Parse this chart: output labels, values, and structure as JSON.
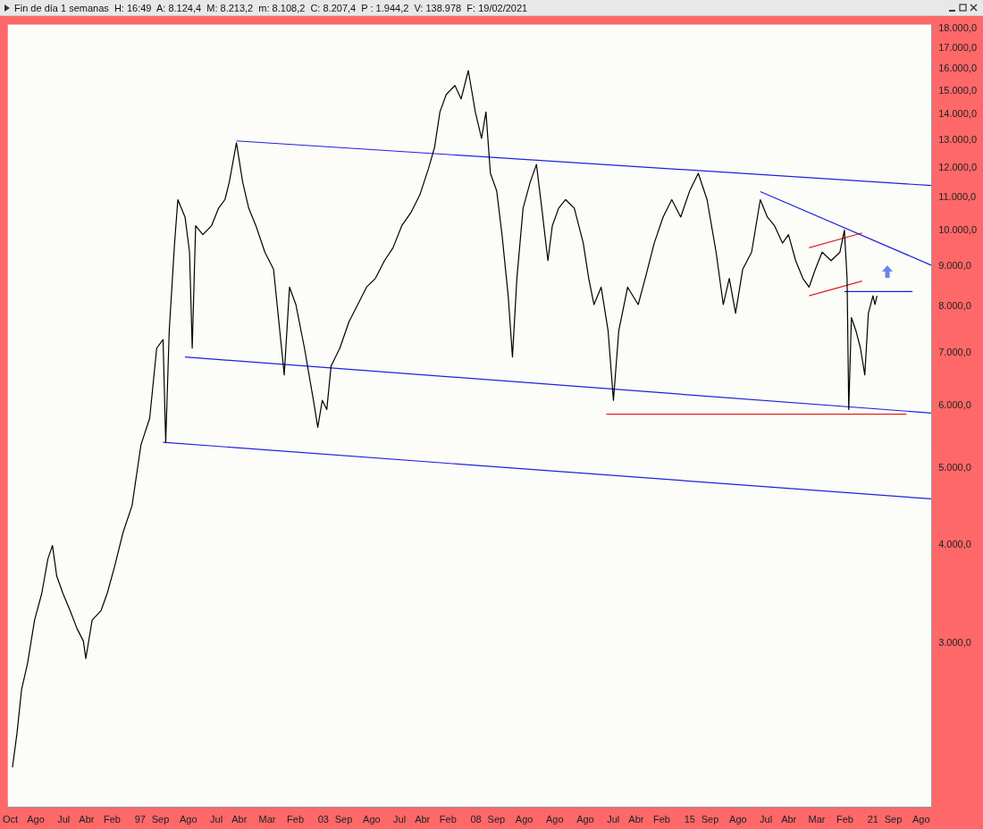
{
  "chart_data": {
    "type": "line",
    "title": "Fin de día 1 semanas  H: 16:49  A: 8.124,4  M: 8.213,2  m: 8.108,2  C: 8.207,4  P : 1.944,2  V: 138.978  F: 19/02/2021",
    "log": "y",
    "legend": false,
    "marker": "none",
    "line_style": "solid",
    "xlim": [
      "1992-09-01",
      "2022-12-01"
    ],
    "xticks": [
      {
        "value": "1992-10",
        "label": "Oct"
      },
      {
        "value": "1993-08",
        "label": "Ago"
      },
      {
        "value": "1994-07",
        "label": "Jul"
      },
      {
        "value": "1995-04",
        "label": "Abr"
      },
      {
        "value": "1996-02",
        "label": "Feb"
      },
      {
        "value": "1997-01",
        "label": "97"
      },
      {
        "value": "1997-09",
        "label": "Sep"
      },
      {
        "value": "1998-08",
        "label": "Ago"
      },
      {
        "value": "1999-07",
        "label": "Jul"
      },
      {
        "value": "2000-04",
        "label": "Abr"
      },
      {
        "value": "2001-03",
        "label": "Mar"
      },
      {
        "value": "2002-02",
        "label": "Feb"
      },
      {
        "value": "2003-01",
        "label": "03"
      },
      {
        "value": "2003-09",
        "label": "Sep"
      },
      {
        "value": "2004-08",
        "label": "Ago"
      },
      {
        "value": "2005-07",
        "label": "Jul"
      },
      {
        "value": "2006-04",
        "label": "Abr"
      },
      {
        "value": "2007-02",
        "label": "Feb"
      },
      {
        "value": "2008-01",
        "label": "08"
      },
      {
        "value": "2008-09",
        "label": "Sep"
      },
      {
        "value": "2009-08",
        "label": "Ago"
      },
      {
        "value": "2010-08",
        "label": "Ago"
      },
      {
        "value": "2011-08",
        "label": "Ago"
      },
      {
        "value": "2012-07",
        "label": "Jul"
      },
      {
        "value": "2013-04",
        "label": "Abr"
      },
      {
        "value": "2014-02",
        "label": "Feb"
      },
      {
        "value": "2015-01",
        "label": "15"
      },
      {
        "value": "2015-09",
        "label": "Sep"
      },
      {
        "value": "2016-08",
        "label": "Ago"
      },
      {
        "value": "2017-07",
        "label": "Jul"
      },
      {
        "value": "2018-04",
        "label": "Abr"
      },
      {
        "value": "2019-03",
        "label": "Mar"
      },
      {
        "value": "2020-02",
        "label": "Feb"
      },
      {
        "value": "2021-01",
        "label": "21"
      },
      {
        "value": "2021-09",
        "label": "Sep"
      },
      {
        "value": "2022-08",
        "label": "Ago"
      }
    ],
    "ylim": [
      1860,
      18200
    ],
    "yticks": [
      {
        "value": 3000,
        "label": "3.000,0"
      },
      {
        "value": 4000,
        "label": "4.000,0"
      },
      {
        "value": 5000,
        "label": "5.000,0"
      },
      {
        "value": 6000,
        "label": "6.000,0"
      },
      {
        "value": 7000,
        "label": "7.000,0"
      },
      {
        "value": 8000,
        "label": "8.000,0"
      },
      {
        "value": 9000,
        "label": "9.000,0"
      },
      {
        "value": 10000,
        "label": "10.000,0"
      },
      {
        "value": 11000,
        "label": "11.000,0"
      },
      {
        "value": 12000,
        "label": "12.000,0"
      },
      {
        "value": 13000,
        "label": "13.000,0"
      },
      {
        "value": 14000,
        "label": "14.000,0"
      },
      {
        "value": 15000,
        "label": "15.000,0"
      },
      {
        "value": 16000,
        "label": "16.000,0"
      },
      {
        "value": 17000,
        "label": "17.000,0"
      },
      {
        "value": 18000,
        "label": "18.000,0"
      }
    ],
    "series": [
      {
        "type": "line",
        "color": "#000000",
        "x": [
          "1992-10-27",
          "1992-12-20",
          "1993-02-12",
          "1993-04-25",
          "1993-07-18",
          "1993-10-12",
          "1993-12-25",
          "1994-02-17",
          "1994-04-09",
          "1994-06-22",
          "1994-09-16",
          "1994-12-09",
          "1995-02-22",
          "1995-03-23",
          "1995-06-07",
          "1995-09-21",
          "1995-12-04",
          "1996-02-27",
          "1996-06-12",
          "1996-09-26",
          "1997-01-11",
          "1997-04-25",
          "1997-07-18",
          "1997-10-02",
          "1997-11-03",
          "1997-12-15",
          "1998-02-17",
          "1998-03-28",
          "1998-06-22",
          "1998-08-15",
          "1998-09-16",
          "1998-10-27",
          "1999-01-21",
          "1999-05-05",
          "1999-07-28",
          "1999-10-12",
          "1999-12-04",
          "2000-02-27",
          "2000-05-11",
          "2000-07-23",
          "2000-10-17",
          "2001-02-01",
          "2001-05-16",
          "2001-09-21",
          "2001-11-23",
          "2002-02-07",
          "2002-05-21",
          "2002-09-05",
          "2002-10-27",
          "2002-12-20",
          "2003-02-12",
          "2003-04-04",
          "2003-07-18",
          "2003-11-03",
          "2004-02-17",
          "2004-06-01",
          "2004-09-16",
          "2005-01-02",
          "2005-04-14",
          "2005-07-28",
          "2005-11-13",
          "2006-02-27",
          "2006-06-12",
          "2006-08-25",
          "2006-10-27",
          "2007-01-11",
          "2007-04-25",
          "2007-07-08",
          "2007-10-02",
          "2007-12-25",
          "2008-03-08",
          "2008-04-30",
          "2008-06-22",
          "2008-09-05",
          "2008-11-08",
          "2009-01-21",
          "2009-03-13",
          "2009-05-05",
          "2009-07-18",
          "2009-10-12",
          "2009-12-25",
          "2010-02-27",
          "2010-05-11",
          "2010-07-03",
          "2010-09-16",
          "2010-12-09",
          "2011-03-23",
          "2011-07-08",
          "2011-09-11",
          "2011-11-13",
          "2012-02-07",
          "2012-04-30",
          "2012-07-03",
          "2012-09-05",
          "2012-12-20",
          "2013-04-25",
          "2013-07-18",
          "2013-11-03",
          "2014-02-17",
          "2014-06-01",
          "2014-09-16",
          "2015-01-02",
          "2015-04-14",
          "2015-07-28",
          "2015-11-13",
          "2016-02-07",
          "2016-04-19",
          "2016-07-03",
          "2016-09-26",
          "2017-01-11",
          "2017-04-25",
          "2017-07-18",
          "2017-10-12",
          "2018-01-16",
          "2018-03-28",
          "2018-06-22",
          "2018-09-16",
          "2018-11-29",
          "2019-02-12",
          "2019-05-05",
          "2019-08-20",
          "2019-12-04",
          "2020-01-26",
          "2020-02-27",
          "2020-03-18",
          "2020-04-19",
          "2020-06-12",
          "2020-08-05",
          "2020-09-26",
          "2020-11-08",
          "2021-01-02",
          "2021-01-25",
          "2021-02-19"
        ],
        "values": [
          2090,
          2310,
          2620,
          2830,
          3210,
          3470,
          3840,
          3990,
          3650,
          3470,
          3300,
          3130,
          3020,
          2870,
          3210,
          3300,
          3470,
          3740,
          4150,
          4480,
          5350,
          5780,
          7090,
          7270,
          5390,
          7460,
          9630,
          10930,
          10390,
          9380,
          7090,
          10130,
          9870,
          10130,
          10660,
          10930,
          11510,
          12900,
          11510,
          10660,
          10130,
          9380,
          8920,
          6560,
          8470,
          8050,
          7090,
          6090,
          5630,
          6090,
          5930,
          6730,
          7090,
          7650,
          8050,
          8470,
          8690,
          9150,
          9500,
          10130,
          10520,
          11070,
          11960,
          12740,
          14110,
          14850,
          15240,
          14660,
          15920,
          14110,
          13070,
          14110,
          11800,
          11220,
          9870,
          8260,
          6910,
          8690,
          10660,
          11510,
          12110,
          10660,
          9150,
          10130,
          10660,
          10930,
          10660,
          9630,
          8690,
          8050,
          8470,
          7460,
          6090,
          7460,
          8470,
          8050,
          8690,
          9630,
          10390,
          10930,
          10390,
          11220,
          11800,
          10930,
          9380,
          8050,
          8690,
          7850,
          8920,
          9380,
          10930,
          10390,
          10130,
          9630,
          9870,
          9150,
          8690,
          8470,
          8920,
          9380,
          9150,
          9380,
          10000,
          8690,
          5930,
          7750,
          7460,
          7090,
          6560,
          7850,
          8260,
          8050,
          8260
        ]
      },
      {
        "type": "line",
        "color": "#2020e0",
        "x": [
          "2000-02-27",
          "2022-11-29"
        ],
        "values": [
          12970,
          11390
        ]
      },
      {
        "type": "line",
        "color": "#2020e0",
        "x": [
          "1998-06-22",
          "2022-11-29"
        ],
        "values": [
          6910,
          5870
        ]
      },
      {
        "type": "line",
        "color": "#2020e0",
        "x": [
          "1997-10-02",
          "2022-11-29"
        ],
        "values": [
          5390,
          4570
        ]
      },
      {
        "type": "line",
        "color": "#2020e0",
        "x": [
          "2017-04-25",
          "2022-11-29"
        ],
        "values": [
          11190,
          9030
        ]
      },
      {
        "type": "line",
        "color": "#2020e0",
        "x": [
          "2020-01-26",
          "2022-04-20"
        ],
        "values": [
          8360,
          8360
        ]
      },
      {
        "type": "line",
        "color": "#e02020",
        "x": [
          "2012-04-09",
          "2022-02-07"
        ],
        "values": [
          5850,
          5850
        ]
      },
      {
        "type": "line",
        "color": "#e02020",
        "x": [
          "2018-11-29",
          "2020-08-25"
        ],
        "values": [
          9500,
          9920
        ]
      },
      {
        "type": "line",
        "color": "#e02020",
        "x": [
          "2018-11-29",
          "2020-08-25"
        ],
        "values": [
          8260,
          8620
        ]
      }
    ]
  }
}
